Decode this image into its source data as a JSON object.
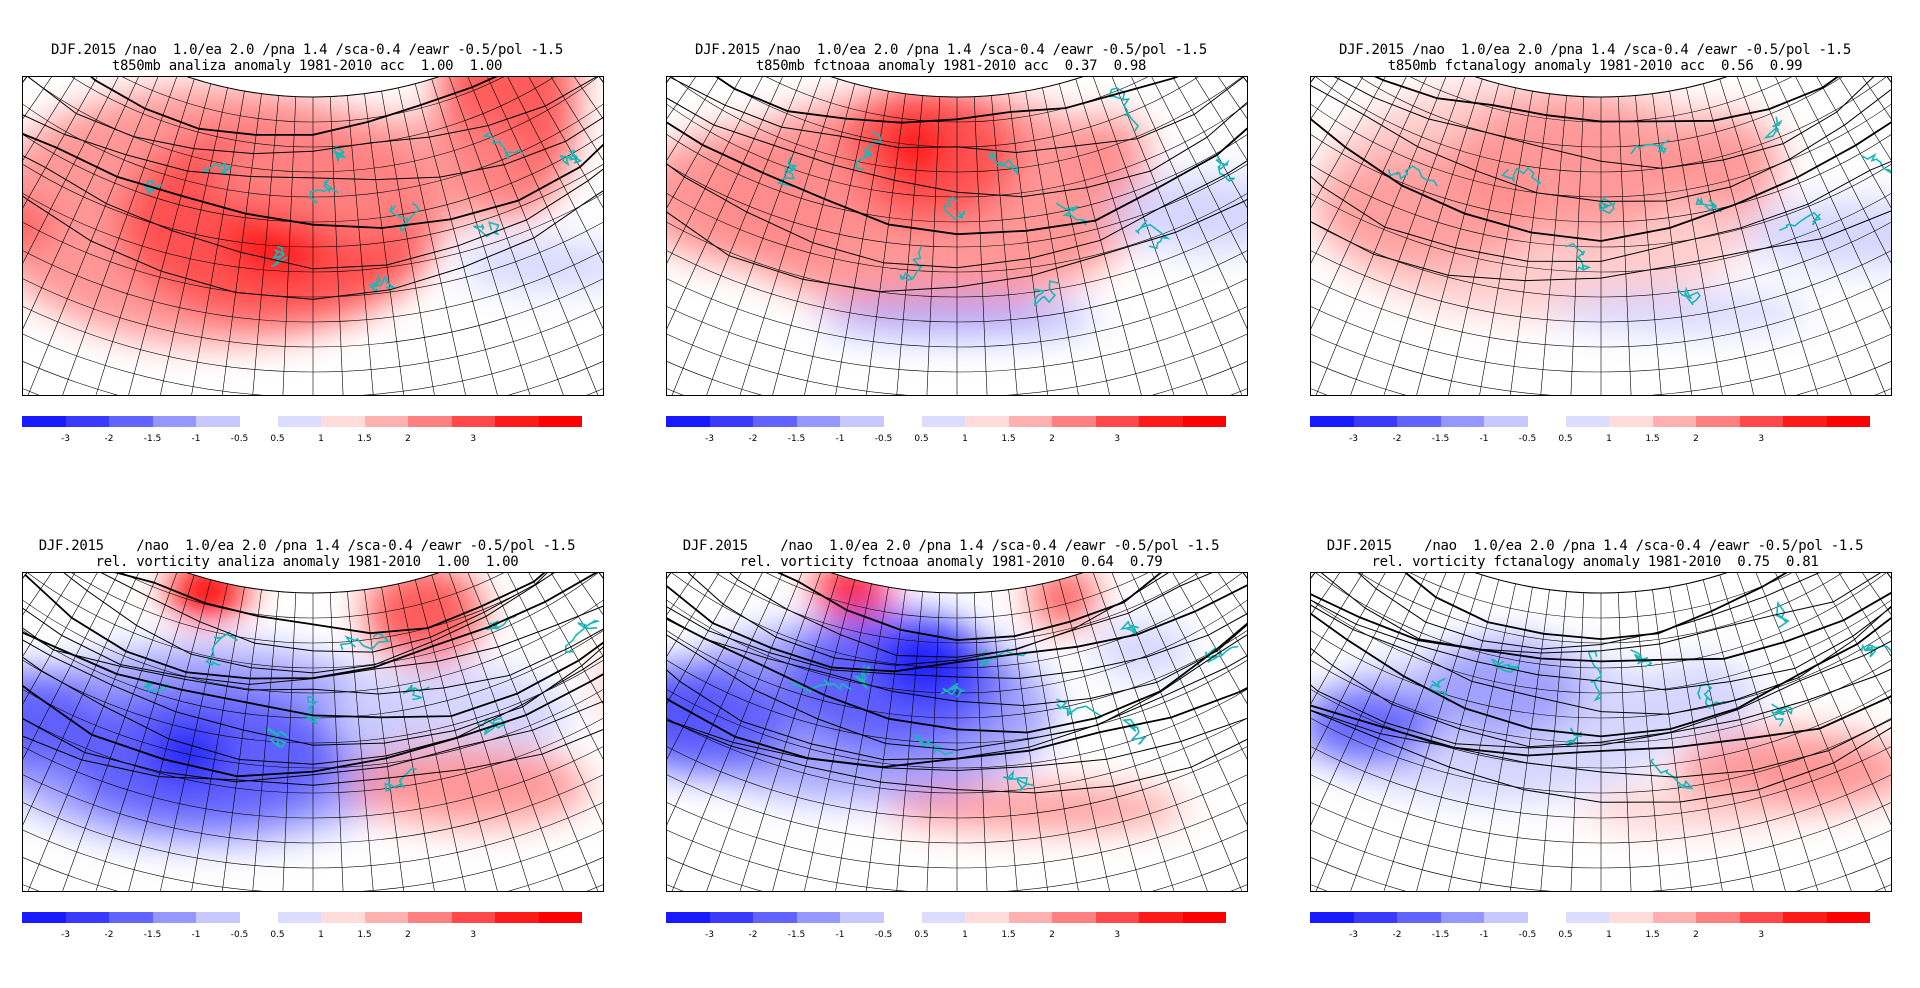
{
  "colorbar": {
    "colors": [
      "#1a1aff",
      "#3a3aff",
      "#6262ff",
      "#9696ff",
      "#c8c8ff",
      "#dcdcff",
      "#ffdcdc",
      "#ffb0b0",
      "#ff8080",
      "#ff4848",
      "#ff1a1a",
      "#ff0000"
    ],
    "neg_labels": [
      "-3",
      "-2",
      "-1.5",
      "-1",
      "-0.5"
    ],
    "pos_labels": [
      "0.5",
      "1",
      "1.5",
      "2",
      "3"
    ]
  },
  "panels": [
    {
      "title1": "DJF.2015 /nao  1.0/ea 2.0 /pna 1.4 /sca-0.4 /eawr -0.5/pol -1.5",
      "title2": "t850mb analiza anomaly 1981-2010 acc  1.00  1.00",
      "field": "t850_analiza"
    },
    {
      "title1": "DJF.2015 /nao  1.0/ea 2.0 /pna 1.4 /sca-0.4 /eawr -0.5/pol -1.5",
      "title2": "t850mb fctnoaa anomaly 1981-2010 acc  0.37  0.98",
      "field": "t850_fctnoaa"
    },
    {
      "title1": "DJF.2015 /nao  1.0/ea 2.0 /pna 1.4 /sca-0.4 /eawr -0.5/pol -1.5",
      "title2": "t850mb fctanalogy anomaly 1981-2010 acc  0.56  0.99",
      "field": "t850_fctanalogy"
    },
    {
      "title1": "DJF.2015    /nao  1.0/ea 2.0 /pna 1.4 /sca-0.4 /eawr -0.5/pol -1.5",
      "title2": "rel. vorticity analiza anomaly 1981-2010  1.00  1.00",
      "field": "vort_analiza"
    },
    {
      "title1": "DJF.2015    /nao  1.0/ea 2.0 /pna 1.4 /sca-0.4 /eawr -0.5/pol -1.5",
      "title2": "rel. vorticity fctnoaa anomaly 1981-2010  0.64  0.79",
      "field": "vort_fctnoaa"
    },
    {
      "title1": "DJF.2015    /nao  1.0/ea 2.0 /pna 1.4 /sca-0.4 /eawr -0.5/pol -1.5",
      "title2": "rel. vorticity fctanalogy anomaly 1981-2010  0.75  0.81",
      "field": "vort_fctanalogy"
    }
  ]
}
